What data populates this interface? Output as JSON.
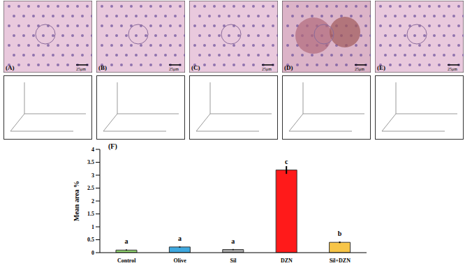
{
  "panels": {
    "labels": [
      "(A)",
      "(B)",
      "(C)",
      "(D)",
      "(E)"
    ],
    "scale_bar": "25μm"
  },
  "chart_data": {
    "type": "bar",
    "title": "(F)",
    "y_label": "Mean area %",
    "categories": [
      "Control",
      "Olive",
      "Sil",
      "DZN",
      "Sil+DZN"
    ],
    "values": [
      0.1,
      0.22,
      0.12,
      3.2,
      0.4
    ],
    "errors": [
      0.02,
      0.02,
      0.02,
      0.15,
      0.03
    ],
    "annotations": [
      "a",
      "a",
      "a",
      "c",
      "b"
    ],
    "colors": [
      "#8fd16f",
      "#3fa9e0",
      "#a6a6a6",
      "#ff1a1a",
      "#f7c548"
    ],
    "ylim": [
      0,
      4
    ],
    "yticks": [
      0,
      0.5,
      1,
      1.5,
      2,
      2.5,
      3,
      3.5,
      4
    ],
    "grid": false
  }
}
